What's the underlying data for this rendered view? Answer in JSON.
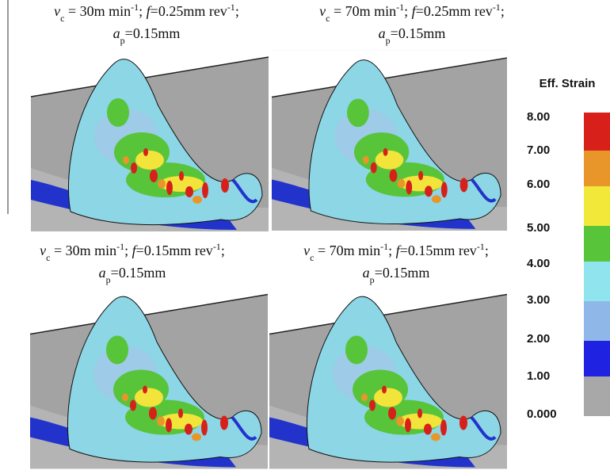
{
  "panels": [
    {
      "line1": [
        "v",
        "c",
        " = 30m min",
        "-1",
        "; ",
        "f",
        "=0.25mm rev",
        "-1",
        ";"
      ],
      "line2": [
        "a",
        "p",
        "=0.15mm"
      ]
    },
    {
      "line1": [
        "v",
        "c",
        " = 70m min",
        "-1",
        "; ",
        "f",
        "=0.25mm rev",
        "-1",
        ";"
      ],
      "line2": [
        "a",
        "p",
        "=0.15mm"
      ]
    },
    {
      "line1": [
        "v",
        "c",
        " = 30m min",
        "-1",
        "; ",
        "f",
        "=0.15mm rev",
        "-1",
        ";"
      ],
      "line2": [
        "a",
        "p",
        "=0.15mm"
      ]
    },
    {
      "line1": [
        "v",
        "c",
        " = 70m min",
        "-1",
        "; ",
        "f",
        "=0.15mm rev",
        "-1",
        ";"
      ],
      "line2": [
        "a",
        "p",
        "=0.15mm"
      ]
    }
  ],
  "legend": {
    "title": "Eff. Strain",
    "labels": [
      "8.00",
      "7.00",
      "6.00",
      "5.00",
      "4.00",
      "3.00",
      "2.00",
      "1.00",
      "0.000"
    ]
  }
}
